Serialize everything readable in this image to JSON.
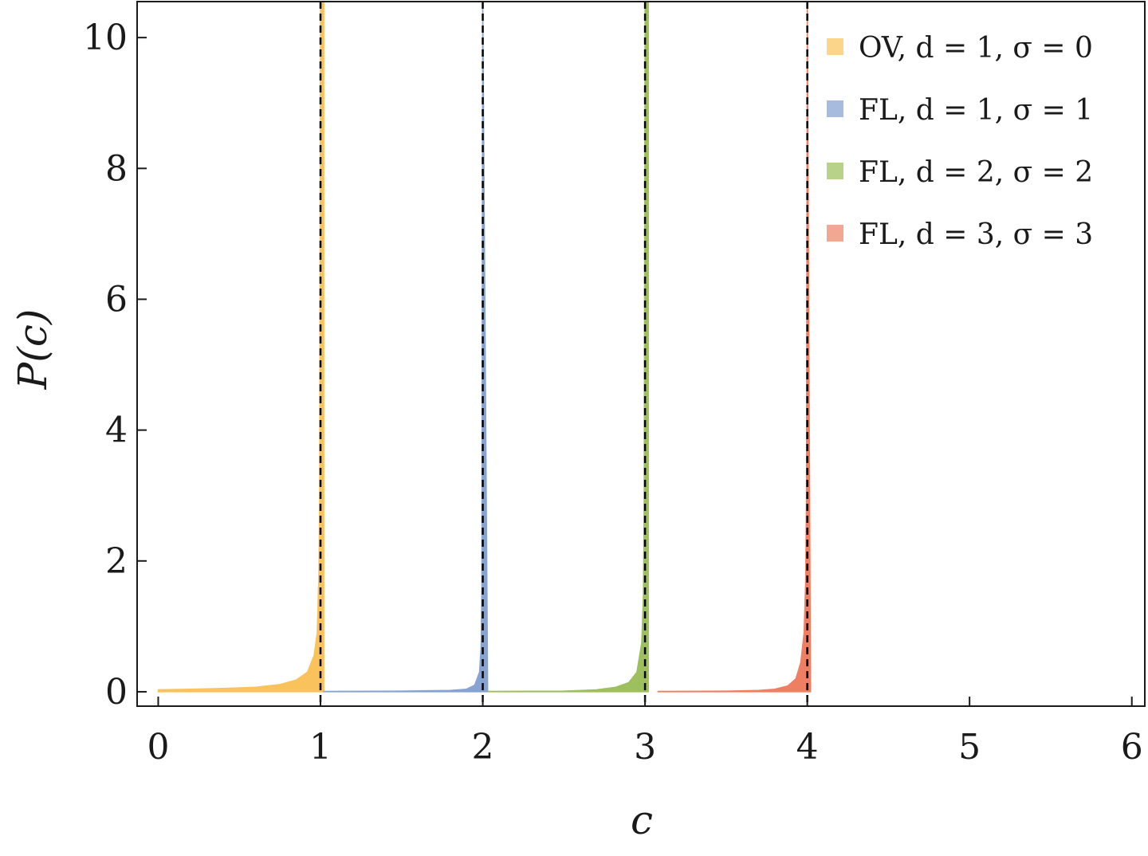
{
  "chart_data": {
    "type": "area",
    "title": "",
    "xlabel": "c",
    "ylabel": "P(c)",
    "xlim": [
      -0.13,
      6.08
    ],
    "ylim": [
      -0.22,
      10.55
    ],
    "x_ticks": [
      "0",
      "1",
      "2",
      "3",
      "4",
      "5",
      "6"
    ],
    "y_ticks": [
      "0",
      "2",
      "4",
      "6",
      "8",
      "10"
    ],
    "legend_position": "top-right",
    "reference_lines": [
      {
        "x": 1,
        "style": "dashed",
        "color": "#000000"
      },
      {
        "x": 2,
        "style": "dashed",
        "color": "#000000"
      },
      {
        "x": 3,
        "style": "dashed",
        "color": "#000000"
      },
      {
        "x": 4,
        "style": "dashed",
        "color": "#000000"
      }
    ],
    "series": [
      {
        "name": "OV, d = 1, σ = 0",
        "color": "#F9C25A",
        "legend_color": "#FAD58A",
        "points": [
          [
            0.0,
            0.0
          ],
          [
            0.0,
            0.03
          ],
          [
            0.2,
            0.04
          ],
          [
            0.4,
            0.05
          ],
          [
            0.6,
            0.07
          ],
          [
            0.75,
            0.11
          ],
          [
            0.85,
            0.18
          ],
          [
            0.92,
            0.3
          ],
          [
            0.96,
            0.55
          ],
          [
            0.98,
            0.9
          ],
          [
            0.99,
            1.8
          ],
          [
            0.995,
            3.0
          ],
          [
            1.0,
            10.55
          ],
          [
            1.02,
            10.55
          ],
          [
            1.02,
            0.0
          ]
        ]
      },
      {
        "name": "FL, d = 1, σ = 1",
        "color": "#86A3D2",
        "legend_color": "#A6BBDE",
        "points": [
          [
            1.02,
            0.0
          ],
          [
            1.02,
            0.005
          ],
          [
            1.5,
            0.01
          ],
          [
            1.8,
            0.02
          ],
          [
            1.9,
            0.04
          ],
          [
            1.95,
            0.1
          ],
          [
            1.98,
            0.3
          ],
          [
            1.99,
            0.7
          ],
          [
            1.995,
            1.6
          ],
          [
            2.0,
            10.55
          ],
          [
            2.03,
            0.05
          ],
          [
            2.03,
            0.0
          ]
        ]
      },
      {
        "name": "FL, d = 2, σ = 2",
        "color": "#9EBF5E",
        "legend_color": "#B8D28A",
        "points": [
          [
            2.03,
            0.0
          ],
          [
            2.03,
            0.005
          ],
          [
            2.5,
            0.01
          ],
          [
            2.7,
            0.03
          ],
          [
            2.82,
            0.07
          ],
          [
            2.9,
            0.14
          ],
          [
            2.95,
            0.3
          ],
          [
            2.98,
            0.75
          ],
          [
            2.99,
            1.5
          ],
          [
            2.995,
            3.0
          ],
          [
            3.0,
            10.55
          ],
          [
            3.02,
            10.55
          ],
          [
            3.02,
            0.0
          ]
        ]
      },
      {
        "name": "FL, d = 3, σ = 3",
        "color": "#EF7F62",
        "legend_color": "#F2A793",
        "points": [
          [
            3.08,
            0.0
          ],
          [
            3.08,
            0.005
          ],
          [
            3.5,
            0.01
          ],
          [
            3.7,
            0.02
          ],
          [
            3.8,
            0.04
          ],
          [
            3.88,
            0.09
          ],
          [
            3.93,
            0.2
          ],
          [
            3.96,
            0.45
          ],
          [
            3.98,
            0.9
          ],
          [
            3.99,
            1.7
          ],
          [
            3.995,
            3.0
          ],
          [
            4.0,
            10.55
          ],
          [
            4.02,
            0.05
          ],
          [
            4.02,
            0.0
          ]
        ]
      }
    ]
  }
}
